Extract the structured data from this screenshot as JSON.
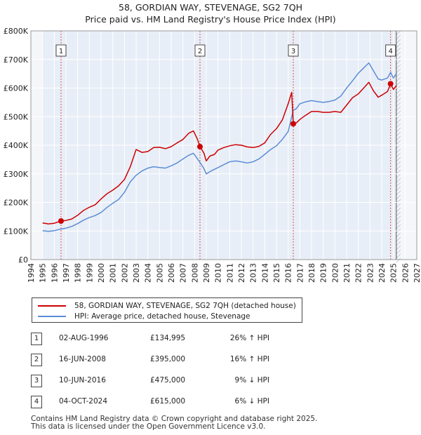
{
  "chart_data": {
    "type": "line",
    "title": "58, GORDIAN WAY, STEVENAGE, SG2 7QH",
    "subtitle": "Price paid vs. HM Land Registry's House Price Index (HPI)",
    "xlim": [
      1994,
      2027
    ],
    "ylim": [
      0,
      800000
    ],
    "x_ticks": [
      "1994",
      "1995",
      "1996",
      "1997",
      "1998",
      "1999",
      "2000",
      "2001",
      "2002",
      "2003",
      "2004",
      "2005",
      "2006",
      "2007",
      "2008",
      "2009",
      "2010",
      "2011",
      "2012",
      "2013",
      "2014",
      "2015",
      "2016",
      "2017",
      "2018",
      "2019",
      "2020",
      "2021",
      "2022",
      "2023",
      "2024",
      "2025",
      "2026",
      "2027"
    ],
    "y_ticks": [
      {
        "value": 0,
        "label": "£0"
      },
      {
        "value": 100000,
        "label": "£100K"
      },
      {
        "value": 200000,
        "label": "£200K"
      },
      {
        "value": 300000,
        "label": "£300K"
      },
      {
        "value": 400000,
        "label": "£400K"
      },
      {
        "value": 500000,
        "label": "£500K"
      },
      {
        "value": 600000,
        "label": "£600K"
      },
      {
        "value": 700000,
        "label": "£700K"
      },
      {
        "value": 800000,
        "label": "£800K"
      }
    ],
    "data_range": [
      1995.0,
      2025.25
    ],
    "series": [
      {
        "name": "58, GORDIAN WAY, STEVENAGE, SG2 7QH (detached house)",
        "color": "#cc0000",
        "points": [
          [
            1995.0,
            128000
          ],
          [
            1995.5,
            125000
          ],
          [
            1996.0,
            127000
          ],
          [
            1996.58,
            134995
          ],
          [
            1997.0,
            137000
          ],
          [
            1997.5,
            142000
          ],
          [
            1998.0,
            155000
          ],
          [
            1998.5,
            172000
          ],
          [
            1999.0,
            183000
          ],
          [
            1999.5,
            192000
          ],
          [
            2000.0,
            212000
          ],
          [
            2000.5,
            230000
          ],
          [
            2001.0,
            243000
          ],
          [
            2001.5,
            258000
          ],
          [
            2002.0,
            280000
          ],
          [
            2002.5,
            325000
          ],
          [
            2003.0,
            385000
          ],
          [
            2003.5,
            375000
          ],
          [
            2004.0,
            378000
          ],
          [
            2004.5,
            392000
          ],
          [
            2005.0,
            393000
          ],
          [
            2005.5,
            388000
          ],
          [
            2006.0,
            395000
          ],
          [
            2006.5,
            408000
          ],
          [
            2007.0,
            420000
          ],
          [
            2007.5,
            442000
          ],
          [
            2007.9,
            450000
          ],
          [
            2008.25,
            420000
          ],
          [
            2008.46,
            395000
          ],
          [
            2008.8,
            372000
          ],
          [
            2009.0,
            345000
          ],
          [
            2009.3,
            362000
          ],
          [
            2009.7,
            368000
          ],
          [
            2010.0,
            383000
          ],
          [
            2010.5,
            392000
          ],
          [
            2011.0,
            398000
          ],
          [
            2011.5,
            402000
          ],
          [
            2012.0,
            400000
          ],
          [
            2012.5,
            394000
          ],
          [
            2013.0,
            392000
          ],
          [
            2013.5,
            396000
          ],
          [
            2014.0,
            408000
          ],
          [
            2014.5,
            438000
          ],
          [
            2015.0,
            458000
          ],
          [
            2015.5,
            488000
          ],
          [
            2016.0,
            545000
          ],
          [
            2016.3,
            585000
          ],
          [
            2016.44,
            475000
          ],
          [
            2016.7,
            478000
          ],
          [
            2017.0,
            490000
          ],
          [
            2017.5,
            505000
          ],
          [
            2018.0,
            518000
          ],
          [
            2018.5,
            518000
          ],
          [
            2019.0,
            515000
          ],
          [
            2019.5,
            515000
          ],
          [
            2020.0,
            518000
          ],
          [
            2020.5,
            515000
          ],
          [
            2021.0,
            540000
          ],
          [
            2021.5,
            566000
          ],
          [
            2022.0,
            580000
          ],
          [
            2022.5,
            602000
          ],
          [
            2022.9,
            620000
          ],
          [
            2023.3,
            590000
          ],
          [
            2023.7,
            568000
          ],
          [
            2024.0,
            575000
          ],
          [
            2024.5,
            588000
          ],
          [
            2024.76,
            615000
          ],
          [
            2025.0,
            595000
          ],
          [
            2025.25,
            608000
          ]
        ]
      },
      {
        "name": "HPI: Average price, detached house, Stevenage",
        "color": "#5b8dd6",
        "points": [
          [
            1995.0,
            101000
          ],
          [
            1995.5,
            99000
          ],
          [
            1996.0,
            101000
          ],
          [
            1996.58,
            107000
          ],
          [
            1997.0,
            110000
          ],
          [
            1997.5,
            116000
          ],
          [
            1998.0,
            126000
          ],
          [
            1998.5,
            138000
          ],
          [
            1999.0,
            147000
          ],
          [
            1999.5,
            154000
          ],
          [
            2000.0,
            165000
          ],
          [
            2000.5,
            182000
          ],
          [
            2001.0,
            197000
          ],
          [
            2001.5,
            210000
          ],
          [
            2002.0,
            235000
          ],
          [
            2002.5,
            272000
          ],
          [
            2003.0,
            295000
          ],
          [
            2003.5,
            310000
          ],
          [
            2004.0,
            320000
          ],
          [
            2004.5,
            325000
          ],
          [
            2005.0,
            322000
          ],
          [
            2005.5,
            320000
          ],
          [
            2006.0,
            328000
          ],
          [
            2006.5,
            338000
          ],
          [
            2007.0,
            352000
          ],
          [
            2007.5,
            365000
          ],
          [
            2007.9,
            372000
          ],
          [
            2008.46,
            340000
          ],
          [
            2008.8,
            318000
          ],
          [
            2009.0,
            300000
          ],
          [
            2009.5,
            312000
          ],
          [
            2010.0,
            322000
          ],
          [
            2010.5,
            332000
          ],
          [
            2011.0,
            342000
          ],
          [
            2011.5,
            345000
          ],
          [
            2012.0,
            342000
          ],
          [
            2012.5,
            338000
          ],
          [
            2013.0,
            342000
          ],
          [
            2013.5,
            352000
          ],
          [
            2014.0,
            368000
          ],
          [
            2014.5,
            385000
          ],
          [
            2015.0,
            398000
          ],
          [
            2015.5,
            420000
          ],
          [
            2016.0,
            448000
          ],
          [
            2016.44,
            522000
          ],
          [
            2016.7,
            528000
          ],
          [
            2017.0,
            545000
          ],
          [
            2017.5,
            552000
          ],
          [
            2018.0,
            556000
          ],
          [
            2018.5,
            553000
          ],
          [
            2019.0,
            550000
          ],
          [
            2019.5,
            553000
          ],
          [
            2020.0,
            558000
          ],
          [
            2020.5,
            572000
          ],
          [
            2021.0,
            600000
          ],
          [
            2021.5,
            625000
          ],
          [
            2022.0,
            652000
          ],
          [
            2022.5,
            672000
          ],
          [
            2022.9,
            688000
          ],
          [
            2023.3,
            660000
          ],
          [
            2023.7,
            632000
          ],
          [
            2024.0,
            628000
          ],
          [
            2024.5,
            635000
          ],
          [
            2024.76,
            655000
          ],
          [
            2025.0,
            635000
          ],
          [
            2025.25,
            650000
          ]
        ]
      }
    ],
    "sales": [
      {
        "label": "1",
        "x": 1996.58,
        "y": 134995
      },
      {
        "label": "2",
        "x": 2008.46,
        "y": 395000
      },
      {
        "label": "3",
        "x": 2016.44,
        "y": 475000
      },
      {
        "label": "4",
        "x": 2024.76,
        "y": 615000
      }
    ],
    "colors": {
      "bg": "#e8eef7",
      "data_bg": "#e8eef7",
      "out_bg": "#f4f6fa",
      "grid": "#ffffff",
      "sale_line": "#d9534f"
    }
  },
  "legend": {
    "property": "58, GORDIAN WAY, STEVENAGE, SG2 7QH (detached house)",
    "hpi": "HPI: Average price, detached house, Stevenage"
  },
  "transactions": [
    {
      "num": "1",
      "date": "02-AUG-1996",
      "price": "£134,995",
      "hpi": "26% ↑ HPI"
    },
    {
      "num": "2",
      "date": "16-JUN-2008",
      "price": "£395,000",
      "hpi": "16% ↑ HPI"
    },
    {
      "num": "3",
      "date": "10-JUN-2016",
      "price": "£475,000",
      "hpi": "9% ↓ HPI"
    },
    {
      "num": "4",
      "date": "04-OCT-2024",
      "price": "£615,000",
      "hpi": "6% ↓ HPI"
    }
  ],
  "footer": {
    "line1": "Contains HM Land Registry data © Crown copyright and database right 2025.",
    "line2": "This data is licensed under the Open Government Licence v3.0."
  }
}
